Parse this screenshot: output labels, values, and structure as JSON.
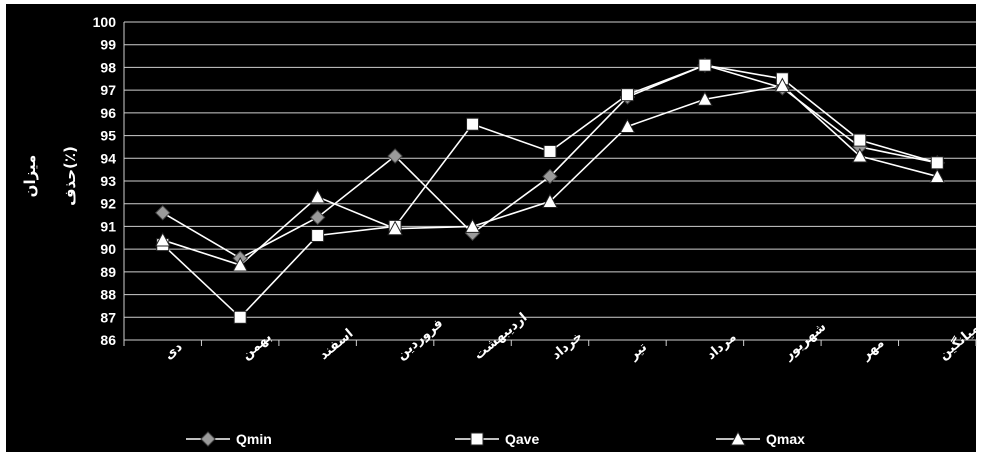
{
  "chart_data": {
    "type": "line",
    "ylabel": "میزان حذف(٪)",
    "ylim": [
      86,
      100
    ],
    "yticks": [
      86,
      87,
      88,
      89,
      90,
      91,
      92,
      93,
      94,
      95,
      96,
      97,
      98,
      99,
      100
    ],
    "categories": [
      "دی",
      "بهمن",
      "اسفند",
      "فروردین",
      "اردیبهشت",
      "خرداد",
      "تیر",
      "مرداد",
      "شهریور",
      "مهر",
      "میانگین"
    ],
    "grid": true,
    "legend_position": "bottom",
    "series": [
      {
        "name": "Qmin",
        "marker": "diamond",
        "color": "#9a9a9a",
        "values": [
          91.6,
          89.6,
          91.4,
          94.1,
          90.7,
          93.2,
          96.7,
          98.1,
          97.1,
          94.5,
          93.8
        ]
      },
      {
        "name": "Qave",
        "marker": "square",
        "color": "#ffffff",
        "values": [
          90.2,
          87.0,
          90.6,
          91.0,
          95.5,
          94.3,
          96.8,
          98.1,
          97.5,
          94.8,
          93.8
        ]
      },
      {
        "name": "Qmax",
        "marker": "triangle",
        "color": "#ffffff",
        "values": [
          90.4,
          89.3,
          92.3,
          90.9,
          91.0,
          92.1,
          95.4,
          96.6,
          97.2,
          94.1,
          93.2
        ]
      }
    ]
  }
}
